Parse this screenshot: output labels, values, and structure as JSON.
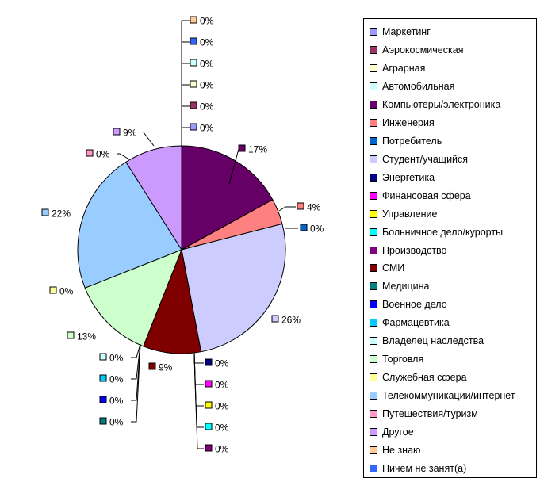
{
  "chart_data": {
    "type": "pie",
    "title": "",
    "slices": [
      {
        "label": "Маркетинг",
        "value": 0,
        "value_label": "0%",
        "color": "#9999ff"
      },
      {
        "label": "Аэрокосмическая",
        "value": 0,
        "value_label": "0%",
        "color": "#993366"
      },
      {
        "label": "Аграрная",
        "value": 0,
        "value_label": "0%",
        "color": "#ffffcc"
      },
      {
        "label": "Автомобильная",
        "value": 0,
        "value_label": "0%",
        "color": "#ccffff"
      },
      {
        "label": "Компьютеры/электроника",
        "value": 17,
        "value_label": "17%",
        "color": "#660066"
      },
      {
        "label": "Инженерия",
        "value": 4,
        "value_label": "4%",
        "color": "#ff8080"
      },
      {
        "label": "Потребитель",
        "value": 0,
        "value_label": "0%",
        "color": "#0066cc"
      },
      {
        "label": "Студент/учащийся",
        "value": 26,
        "value_label": "26%",
        "color": "#ccccff"
      },
      {
        "label": "Энергетика",
        "value": 0,
        "value_label": "0%",
        "color": "#000080"
      },
      {
        "label": "Финансовая сфера",
        "value": 0,
        "value_label": "0%",
        "color": "#ff00ff"
      },
      {
        "label": "Управление",
        "value": 0,
        "value_label": "0%",
        "color": "#ffff00"
      },
      {
        "label": "Больничное дело/курорты",
        "value": 0,
        "value_label": "0%",
        "color": "#00ffff"
      },
      {
        "label": "Производство",
        "value": 0,
        "value_label": "0%",
        "color": "#800080"
      },
      {
        "label": "СМИ",
        "value": 9,
        "value_label": "9%",
        "color": "#800000"
      },
      {
        "label": "Медицина",
        "value": 0,
        "value_label": "0%",
        "color": "#008080"
      },
      {
        "label": "Военное дело",
        "value": 0,
        "value_label": "0%",
        "color": "#0000ff"
      },
      {
        "label": "Фармацевтика",
        "value": 0,
        "value_label": "0%",
        "color": "#00ccff"
      },
      {
        "label": "Владелец наследства",
        "value": 0,
        "value_label": "0%",
        "color": "#ccffff"
      },
      {
        "label": "Торговля",
        "value": 13,
        "value_label": "13%",
        "color": "#ccffcc"
      },
      {
        "label": "Служебная сфера",
        "value": 0,
        "value_label": "0%",
        "color": "#ffff99"
      },
      {
        "label": "Телекоммуникации/интернет",
        "value": 22,
        "value_label": "22%",
        "color": "#99ccff"
      },
      {
        "label": "Путешествия/туризм",
        "value": 0,
        "value_label": "0%",
        "color": "#ff99cc"
      },
      {
        "label": "Другое",
        "value": 9,
        "value_label": "9%",
        "color": "#cc99ff"
      },
      {
        "label": "Не знаю",
        "value": 0,
        "value_label": "0%",
        "color": "#ffcc99"
      },
      {
        "label": "Ничем не занят(а)",
        "value": 0,
        "value_label": "0%",
        "color": "#3366ff"
      }
    ],
    "legend_position": "right"
  }
}
